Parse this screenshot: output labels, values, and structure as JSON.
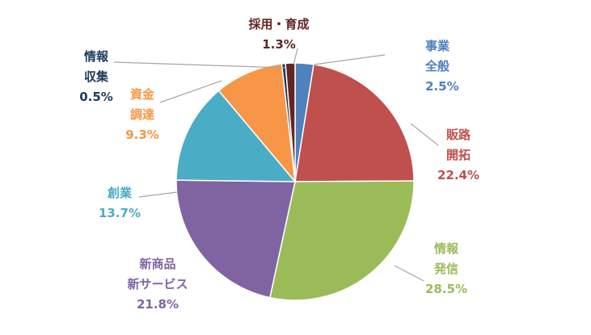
{
  "chart_data": {
    "type": "pie",
    "start_angle_deg": 0,
    "direction": "clockwise",
    "legend": "none",
    "slices": [
      {
        "lines": [
          "事業",
          "全般"
        ],
        "value": 2.5,
        "value_label": "2.5%",
        "color": "#4F81BD"
      },
      {
        "lines": [
          "販路",
          "開拓"
        ],
        "value": 22.4,
        "value_label": "22.4%",
        "color": "#C0504D"
      },
      {
        "lines": [
          "情報",
          "発信"
        ],
        "value": 28.5,
        "value_label": "28.5%",
        "color": "#9BBB59"
      },
      {
        "lines": [
          "新商品",
          "新サービス"
        ],
        "value": 21.8,
        "value_label": "21.8%",
        "color": "#8064A2"
      },
      {
        "lines": [
          "創業"
        ],
        "value": 13.7,
        "value_label": "13.7%",
        "color": "#4BACC6"
      },
      {
        "lines": [
          "資金",
          "調達"
        ],
        "value": 9.3,
        "value_label": "9.3%",
        "color": "#F79646"
      },
      {
        "lines": [
          "情報",
          "収集"
        ],
        "value": 0.5,
        "value_label": "0.5%",
        "color": "#1F3B5C"
      },
      {
        "lines": [
          "採用・育成"
        ],
        "value": 1.3,
        "value_label": "1.3%",
        "color": "#632523"
      }
    ]
  }
}
